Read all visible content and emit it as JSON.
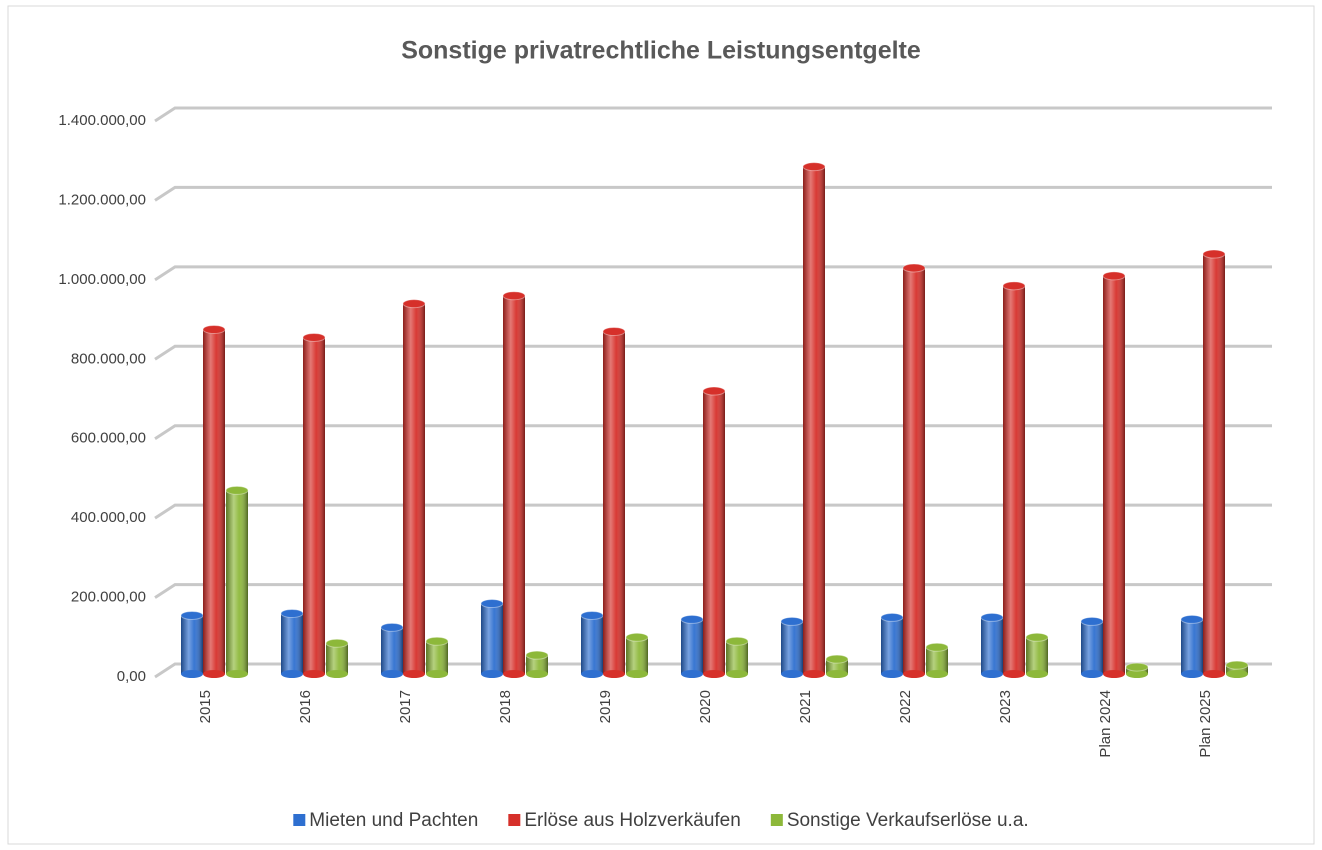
{
  "chart_data": {
    "type": "bar",
    "title": "Sonstige privatrechtliche Leistungsentgelte",
    "categories": [
      "2015",
      "2016",
      "2017",
      "2018",
      "2019",
      "2020",
      "2021",
      "2022",
      "2023",
      "Plan 2024",
      "Plan 2025"
    ],
    "series": [
      {
        "name": "Mieten und Pachten",
        "color": "#2e6fd0",
        "values": [
          155000,
          160000,
          125000,
          185000,
          155000,
          145000,
          140000,
          150000,
          150000,
          140000,
          145000
        ]
      },
      {
        "name": "Erlöse aus Holzverkäufen",
        "color": "#d6302a",
        "values": [
          875000,
          855000,
          940000,
          960000,
          870000,
          720000,
          1285000,
          1030000,
          985000,
          1010000,
          1065000
        ]
      },
      {
        "name": "Sonstige Verkaufserlöse u.a.",
        "color": "#8db83a",
        "values": [
          470000,
          85000,
          90000,
          55000,
          100000,
          90000,
          45000,
          75000,
          100000,
          25000,
          30000
        ]
      }
    ],
    "ylim": [
      0,
      1400000
    ],
    "yticks": [
      {
        "value": 0,
        "label": "0,00"
      },
      {
        "value": 200000,
        "label": "200.000,00"
      },
      {
        "value": 400000,
        "label": "400.000,00"
      },
      {
        "value": 600000,
        "label": "600.000,00"
      },
      {
        "value": 800000,
        "label": "800.000,00"
      },
      {
        "value": 1000000,
        "label": "1.000.000,00"
      },
      {
        "value": 1200000,
        "label": "1.200.000,00"
      },
      {
        "value": 1400000,
        "label": "1.400.000,00"
      }
    ],
    "grid": true,
    "legend": "bottom"
  }
}
